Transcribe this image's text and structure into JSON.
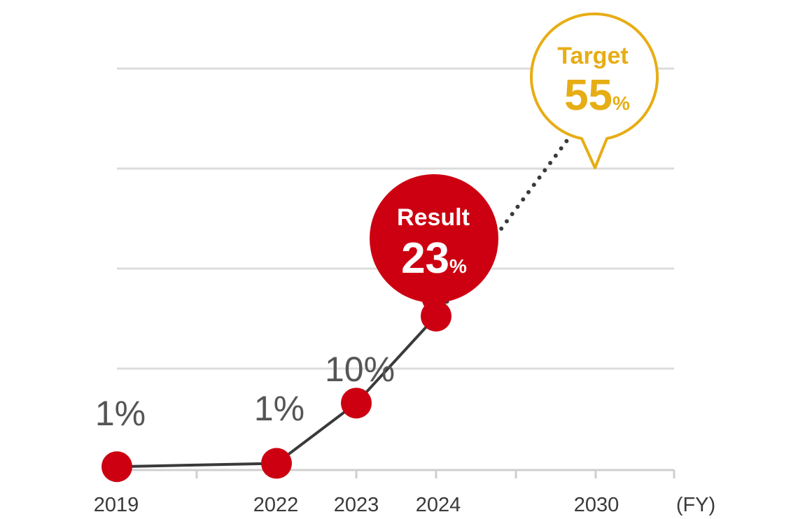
{
  "chart_data": {
    "type": "line",
    "categories": [
      "2019",
      "2022",
      "2023",
      "2024",
      "2030"
    ],
    "x_unit_label": "(FY)",
    "ylim": [
      0,
      60
    ],
    "grid": true,
    "series": [
      {
        "values": [
          0.5,
          1,
          10,
          23,
          null
        ],
        "color": "#3a3a3a",
        "marker_color": "#cc0011"
      },
      {
        "values": [
          null,
          null,
          null,
          23,
          55
        ],
        "style": "dotted",
        "color": "#3a3a3a",
        "marker_color": "#f0b31a"
      }
    ],
    "data_labels": [
      "1%",
      "1%",
      "10%",
      "",
      ""
    ],
    "callouts": {
      "result": {
        "title": "Result",
        "value": "23",
        "unit": "%",
        "color": "#cc0011"
      },
      "target": {
        "title": "Target",
        "value": "55",
        "unit": "%",
        "color": "#e7ad14"
      }
    }
  }
}
